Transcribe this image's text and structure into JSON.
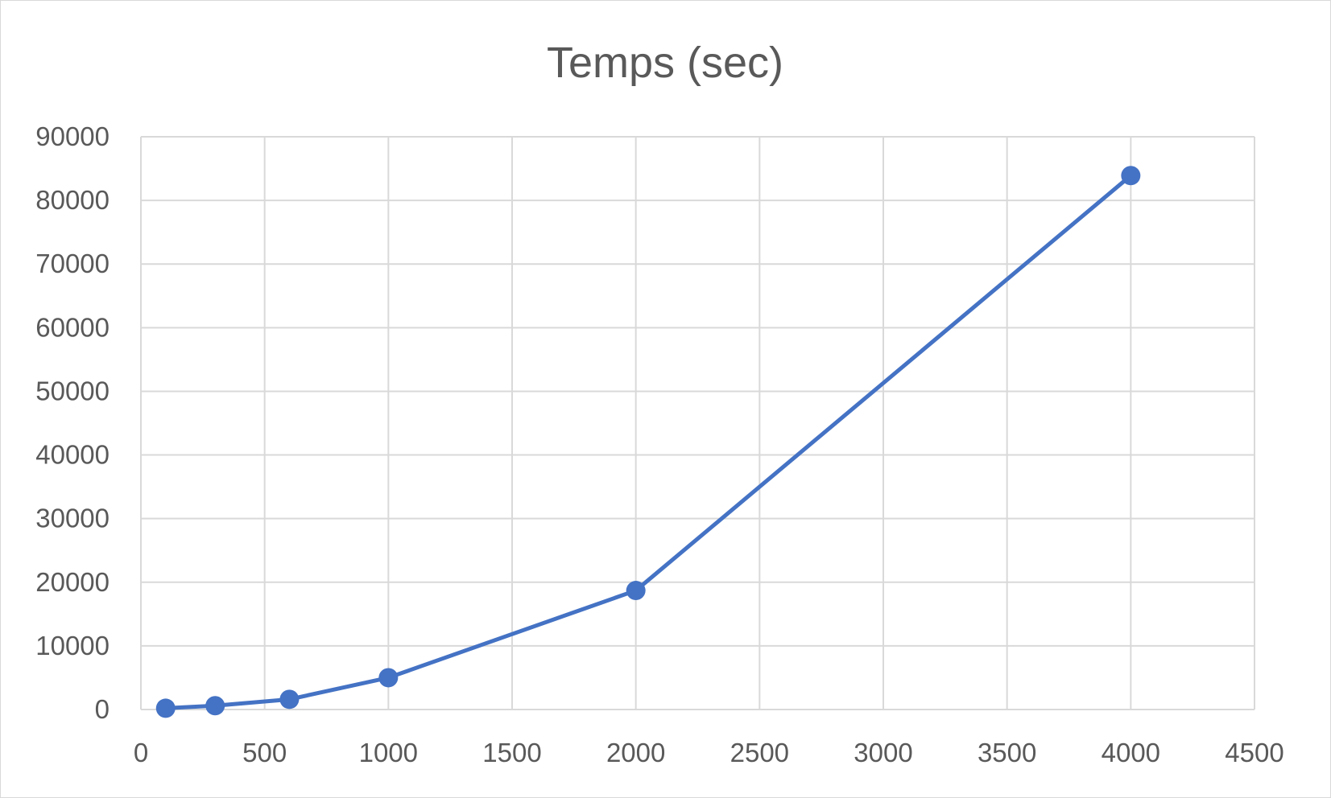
{
  "chart_data": {
    "type": "scatter",
    "title": "Temps (sec)",
    "xlabel": "",
    "ylabel": "",
    "xlim": [
      0,
      4500
    ],
    "ylim": [
      0,
      90000
    ],
    "x_ticks": [
      "0",
      "500",
      "1000",
      "1500",
      "2000",
      "2500",
      "3000",
      "3500",
      "4000",
      "4500"
    ],
    "y_ticks": [
      "0",
      "10000",
      "20000",
      "30000",
      "40000",
      "50000",
      "60000",
      "70000",
      "80000",
      "90000"
    ],
    "grid": true,
    "legend": "none",
    "series": [
      {
        "color": "#4472c4",
        "x": [
          100,
          300,
          600,
          1000,
          2000,
          4000
        ],
        "y": [
          200,
          600,
          1600,
          5000,
          18700,
          83900
        ]
      }
    ]
  }
}
